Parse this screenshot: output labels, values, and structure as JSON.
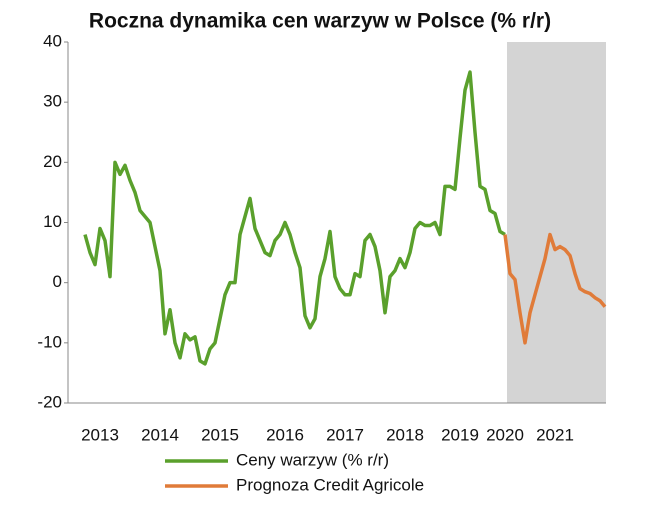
{
  "chart_data": {
    "type": "line",
    "title": "Roczna dynamika cen warzyw w Polsce (% r/r)",
    "categories": [
      null,
      null,
      null,
      "2013",
      null,
      null,
      null,
      null,
      null,
      null,
      null,
      null,
      null,
      null,
      null,
      "2014",
      null,
      null,
      null,
      null,
      null,
      null,
      null,
      null,
      null,
      null,
      null,
      "2015",
      null,
      null,
      null,
      null,
      null,
      null,
      null,
      null,
      null,
      null,
      null,
      null,
      "2016",
      null,
      null,
      null,
      null,
      null,
      null,
      null,
      null,
      null,
      null,
      null,
      "2017",
      null,
      null,
      null,
      null,
      null,
      null,
      null,
      null,
      null,
      null,
      null,
      "2018",
      null,
      null,
      null,
      null,
      null,
      null,
      null,
      null,
      null,
      null,
      "2019",
      null,
      null,
      null,
      null,
      null,
      null,
      null,
      null,
      "2020",
      null,
      null,
      null,
      null,
      null,
      null,
      null,
      null,
      null,
      "2021",
      null,
      null,
      null,
      null,
      null,
      null,
      null,
      null,
      null,
      null
    ],
    "series": [
      {
        "name": "Ceny warzyw (% r/r)",
        "color": "#5aa02c",
        "values": [
          8,
          5,
          3,
          9,
          7,
          1,
          20,
          18,
          19.5,
          17,
          15,
          12,
          11,
          10,
          6,
          2,
          -8.5,
          -4.5,
          -10,
          -12.5,
          -8.5,
          -9.5,
          -9,
          -13,
          -13.5,
          -11,
          -10,
          -6,
          -2,
          0,
          0,
          8,
          11,
          14,
          9,
          7,
          5,
          4.5,
          7,
          8,
          10,
          8,
          5,
          2.5,
          -5.5,
          -7.5,
          -6,
          1,
          4,
          8.5,
          1,
          -1,
          -2,
          -2,
          1.5,
          1,
          7,
          8,
          6,
          2,
          -5,
          1,
          2,
          4,
          2.5,
          5,
          9,
          10,
          9.5,
          9.5,
          10,
          8,
          16,
          16,
          15.5,
          24,
          32,
          35,
          25,
          16,
          15.5,
          12,
          11.5,
          8.5,
          8,
          null,
          null,
          null,
          null,
          null,
          null,
          null,
          null,
          null,
          null,
          null,
          null,
          null,
          null,
          null,
          null,
          null,
          null,
          null,
          null
        ]
      },
      {
        "name": "Prognoza Credit Agricole",
        "color": "#e07b39",
        "values": [
          null,
          null,
          null,
          null,
          null,
          null,
          null,
          null,
          null,
          null,
          null,
          null,
          null,
          null,
          null,
          null,
          null,
          null,
          null,
          null,
          null,
          null,
          null,
          null,
          null,
          null,
          null,
          null,
          null,
          null,
          null,
          null,
          null,
          null,
          null,
          null,
          null,
          null,
          null,
          null,
          null,
          null,
          null,
          null,
          null,
          null,
          null,
          null,
          null,
          null,
          null,
          null,
          null,
          null,
          null,
          null,
          null,
          null,
          null,
          null,
          null,
          null,
          null,
          null,
          null,
          null,
          null,
          null,
          null,
          null,
          null,
          null,
          null,
          null,
          null,
          null,
          null,
          null,
          null,
          null,
          null,
          null,
          null,
          null,
          8,
          1.5,
          0.5,
          -5,
          -10,
          -5,
          -2,
          1,
          4,
          8,
          5.5,
          6,
          5.5,
          4.5,
          1.5,
          -1,
          -1.5,
          -1.8,
          -2.5,
          -3,
          -4
        ]
      }
    ],
    "ylim": [
      -20,
      40
    ],
    "yticks": [
      -20,
      -10,
      0,
      10,
      20,
      30,
      40
    ],
    "grid": false
  }
}
